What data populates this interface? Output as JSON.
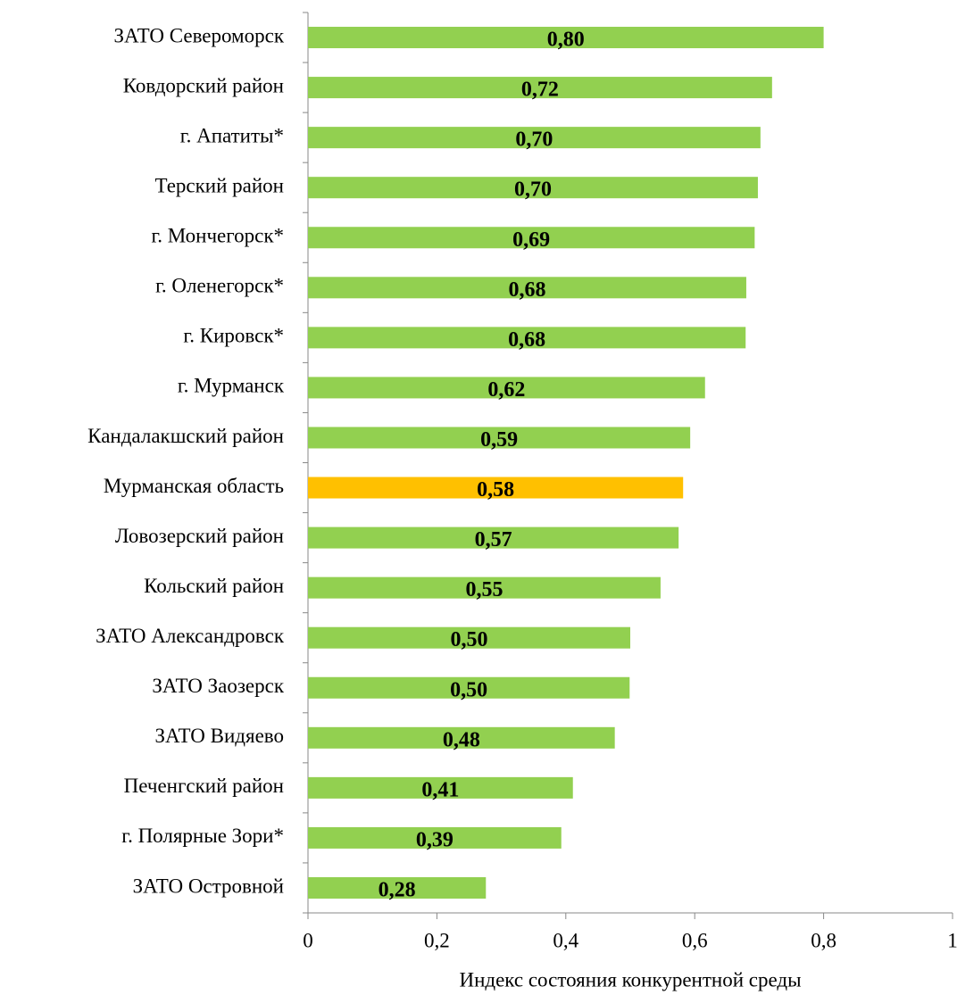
{
  "chart_data": {
    "type": "barh",
    "x_label": "Индекс состояния конкурентной среды",
    "categories": [
      "ЗАТО Североморск",
      "Ковдорский район",
      "г. Апатиты*",
      "Терский район",
      "г. Мончегорск*",
      "г. Оленегорск*",
      "г. Кировск*",
      "г. Мурманск",
      "Кандалакшский район",
      "Мурманская область",
      "Ловозерский район",
      "Кольский район",
      "ЗАТО Александровск",
      "ЗАТО Заозерск",
      "ЗАТО Видяево",
      "Печенгский район",
      "г. Полярные Зори*",
      "ЗАТО Островной"
    ],
    "values": [
      0.8,
      0.72,
      0.702,
      0.698,
      0.693,
      0.68,
      0.679,
      0.616,
      0.593,
      0.582,
      0.575,
      0.547,
      0.5,
      0.499,
      0.476,
      0.411,
      0.393,
      0.276
    ],
    "value_labels": [
      "0,80",
      "0,72",
      "0,70",
      "0,70",
      "0,69",
      "0,68",
      "0,68",
      "0,62",
      "0,59",
      "0,58",
      "0,57",
      "0,55",
      "0,50",
      "0,50",
      "0,48",
      "0,41",
      "0,39",
      "0,28"
    ],
    "colors": [
      "#92d050",
      "#92d050",
      "#92d050",
      "#92d050",
      "#92d050",
      "#92d050",
      "#92d050",
      "#92d050",
      "#92d050",
      "#ffc000",
      "#92d050",
      "#92d050",
      "#92d050",
      "#92d050",
      "#92d050",
      "#92d050",
      "#92d050",
      "#92d050"
    ],
    "xlim": [
      0,
      1
    ],
    "xticks": [
      0,
      {
        "value": 0.2,
        "label": "0,2"
      },
      {
        "value": 0.4,
        "label": "0,4"
      },
      {
        "value": 0.6,
        "label": "0,6"
      },
      {
        "value": 0.8,
        "label": "0,8"
      },
      1
    ],
    "grid": false
  }
}
